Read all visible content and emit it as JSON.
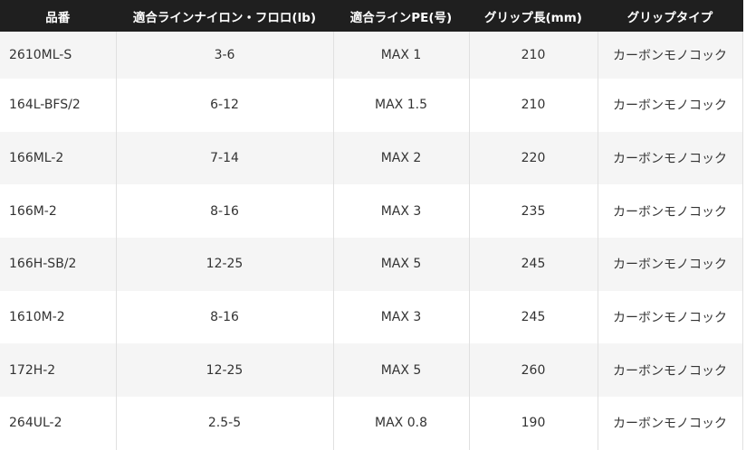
{
  "headers": [
    "品番",
    "適合ラインナイロン・フロロ(lb)",
    "適合ラインPE(号)",
    "グリップ長(mm)",
    "グリップタイプ"
  ],
  "rows": [
    [
      "2610ML-S",
      "3-6",
      "MAX 1",
      "210",
      "カーボンモノコック"
    ],
    [
      "164L-BFS/2",
      "6-12",
      "MAX 1.5",
      "210",
      "カーボンモノコック"
    ],
    [
      "166ML-2",
      "7-14",
      "MAX 2",
      "220",
      "カーボンモノコック"
    ],
    [
      "166M-2",
      "8-16",
      "MAX 3",
      "235",
      "カーボンモノコック"
    ],
    [
      "166H-SB/2",
      "12-25",
      "MAX 5",
      "245",
      "カーボンモノコック"
    ],
    [
      "1610M-2",
      "8-16",
      "MAX 3",
      "245",
      "カーボンモノコック"
    ],
    [
      "172H-2",
      "12-25",
      "MAX 5",
      "260",
      "カーボンモノコック"
    ],
    [
      "264UL-2",
      "2.5-5",
      "MAX 0.8",
      "190",
      "カーボンモノコック"
    ]
  ]
}
